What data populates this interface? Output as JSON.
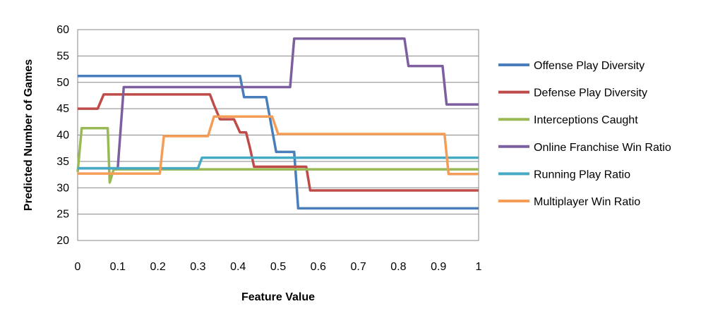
{
  "chart_data": {
    "type": "line",
    "title": "",
    "xlabel": "Feature Value",
    "ylabel": "Predicted Number of Games",
    "xlim": [
      0,
      1
    ],
    "ylim": [
      20,
      60
    ],
    "x_ticks": [
      "0",
      "0.1",
      "0.2",
      "0.3",
      "0.4",
      "0.5",
      "0.6",
      "0.7",
      "0.8",
      "0.9",
      "1"
    ],
    "y_ticks": [
      "20",
      "25",
      "30",
      "35",
      "40",
      "45",
      "50",
      "55",
      "60"
    ],
    "grid": "horizontal",
    "legend_position": "right",
    "series": [
      {
        "name": "Offense Play Diversity",
        "color": "#4a7ebb",
        "points": [
          [
            0,
            51.2
          ],
          [
            0.405,
            51.2
          ],
          [
            0.415,
            47.2
          ],
          [
            0.47,
            47.2
          ],
          [
            0.495,
            36.8
          ],
          [
            0.54,
            36.8
          ],
          [
            0.55,
            26.1
          ],
          [
            1,
            26.1
          ]
        ]
      },
      {
        "name": "Defense Play Diversity",
        "color": "#be4b48",
        "points": [
          [
            0,
            45
          ],
          [
            0.05,
            45
          ],
          [
            0.065,
            47.7
          ],
          [
            0.33,
            47.7
          ],
          [
            0.34,
            45.7
          ],
          [
            0.355,
            43
          ],
          [
            0.39,
            43
          ],
          [
            0.405,
            40.5
          ],
          [
            0.42,
            40.5
          ],
          [
            0.43,
            37.5
          ],
          [
            0.44,
            34
          ],
          [
            0.57,
            34
          ],
          [
            0.58,
            29.5
          ],
          [
            1,
            29.5
          ]
        ]
      },
      {
        "name": "Interceptions Caught",
        "color": "#98b954",
        "points": [
          [
            0,
            33
          ],
          [
            0.01,
            41.3
          ],
          [
            0.075,
            41.3
          ],
          [
            0.08,
            31
          ],
          [
            0.09,
            33.5
          ],
          [
            1,
            33.5
          ]
        ]
      },
      {
        "name": "Online Franchise Win Ratio",
        "color": "#7d5fa0",
        "points": [
          [
            0,
            33.7
          ],
          [
            0.1,
            33.7
          ],
          [
            0.115,
            49.1
          ],
          [
            0.53,
            49.1
          ],
          [
            0.54,
            58.3
          ],
          [
            0.815,
            58.3
          ],
          [
            0.825,
            53.1
          ],
          [
            0.91,
            53.1
          ],
          [
            0.92,
            45.8
          ],
          [
            1,
            45.8
          ]
        ]
      },
      {
        "name": "Running Play Ratio",
        "color": "#46aac5",
        "points": [
          [
            0,
            33.7
          ],
          [
            0.3,
            33.7
          ],
          [
            0.31,
            35.7
          ],
          [
            1,
            35.7
          ]
        ]
      },
      {
        "name": "Multiplayer Win Ratio",
        "color": "#f59d56",
        "points": [
          [
            0,
            32.7
          ],
          [
            0.205,
            32.7
          ],
          [
            0.215,
            39.8
          ],
          [
            0.325,
            39.8
          ],
          [
            0.34,
            43.5
          ],
          [
            0.485,
            43.5
          ],
          [
            0.5,
            40.2
          ],
          [
            0.915,
            40.2
          ],
          [
            0.925,
            32.6
          ],
          [
            1,
            32.6
          ]
        ]
      }
    ]
  }
}
